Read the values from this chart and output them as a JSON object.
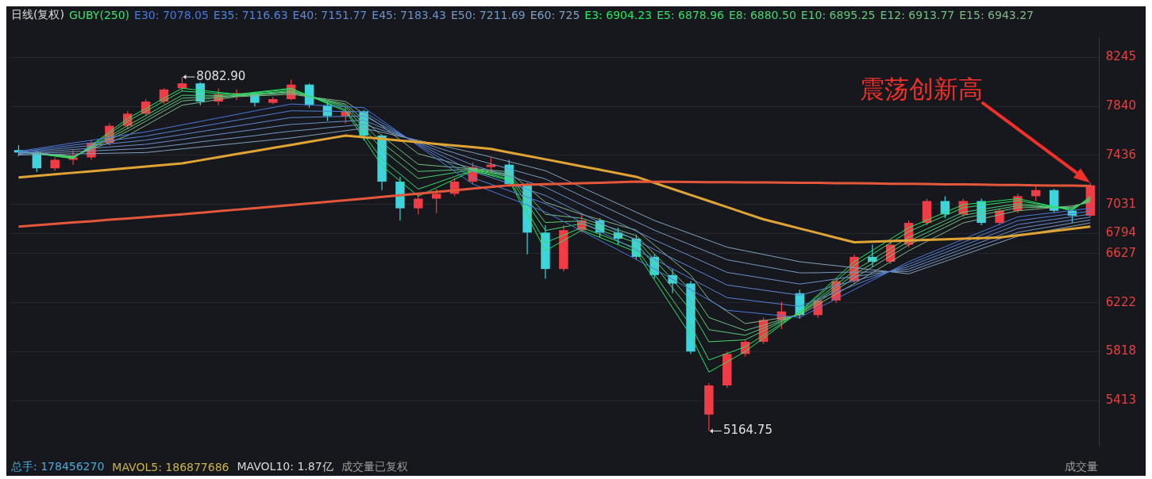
{
  "chart_data": {
    "type": "candlestick",
    "title": "日线(复权)",
    "subtitle": "GUBY(250)",
    "categories": [
      null,
      null,
      null,
      null,
      null,
      null,
      null,
      null,
      null,
      null,
      null,
      null,
      null,
      null,
      null,
      null,
      null,
      null,
      null,
      null,
      null,
      null,
      null,
      null,
      null,
      null,
      null,
      null,
      null,
      null,
      null,
      null,
      null,
      null,
      null,
      null,
      null,
      null,
      null,
      null,
      null,
      null,
      null,
      null,
      null,
      null,
      null,
      null,
      null,
      null,
      null,
      null,
      null,
      null,
      null,
      null,
      null,
      null,
      null,
      null
    ],
    "ohlc": [
      [
        7480,
        7520,
        7430,
        7460
      ],
      [
        7460,
        7480,
        7300,
        7330
      ],
      [
        7330,
        7420,
        7310,
        7400
      ],
      [
        7400,
        7480,
        7360,
        7420
      ],
      [
        7420,
        7560,
        7400,
        7540
      ],
      [
        7540,
        7700,
        7520,
        7680
      ],
      [
        7680,
        7800,
        7650,
        7780
      ],
      [
        7780,
        7900,
        7760,
        7880
      ],
      [
        7880,
        7990,
        7860,
        7980
      ],
      [
        7990,
        8082.9,
        7960,
        8030
      ],
      [
        8030,
        8040,
        7850,
        7880
      ],
      [
        7880,
        7990,
        7850,
        7940
      ],
      [
        7940,
        7980,
        7890,
        7950
      ],
      [
        7950,
        7960,
        7840,
        7870
      ],
      [
        7870,
        7920,
        7860,
        7900
      ],
      [
        7900,
        8060,
        7890,
        8020
      ],
      [
        8020,
        8030,
        7830,
        7850
      ],
      [
        7850,
        7880,
        7720,
        7760
      ],
      [
        7760,
        7830,
        7700,
        7800
      ],
      [
        7800,
        7810,
        7560,
        7600
      ],
      [
        7600,
        7610,
        7150,
        7220
      ],
      [
        7220,
        7260,
        6900,
        7000
      ],
      [
        7000,
        7120,
        6950,
        7080
      ],
      [
        7080,
        7160,
        6960,
        7120
      ],
      [
        7120,
        7250,
        7100,
        7220
      ],
      [
        7220,
        7380,
        7200,
        7340
      ],
      [
        7340,
        7420,
        7300,
        7360
      ],
      [
        7360,
        7400,
        7180,
        7200
      ],
      [
        7200,
        7210,
        6620,
        6800
      ],
      [
        6800,
        6860,
        6420,
        6500
      ],
      [
        6500,
        6860,
        6480,
        6820
      ],
      [
        6820,
        6950,
        6800,
        6900
      ],
      [
        6900,
        6920,
        6760,
        6800
      ],
      [
        6800,
        6840,
        6700,
        6750
      ],
      [
        6750,
        6780,
        6580,
        6600
      ],
      [
        6600,
        6620,
        6420,
        6450
      ],
      [
        6450,
        6500,
        6300,
        6380
      ],
      [
        6380,
        6400,
        5800,
        5820
      ],
      [
        5300,
        5560,
        5164.75,
        5540
      ],
      [
        5540,
        5820,
        5520,
        5800
      ],
      [
        5800,
        5920,
        5780,
        5900
      ],
      [
        5900,
        6100,
        5880,
        6080
      ],
      [
        6080,
        6230,
        6005,
        6150
      ],
      [
        6300,
        6330,
        6090,
        6120
      ],
      [
        6120,
        6260,
        6100,
        6240
      ],
      [
        6240,
        6420,
        6220,
        6400
      ],
      [
        6400,
        6620,
        6380,
        6600
      ],
      [
        6600,
        6700,
        6520,
        6560
      ],
      [
        6560,
        6720,
        6540,
        6700
      ],
      [
        6700,
        6900,
        6680,
        6880
      ],
      [
        6880,
        7080,
        6860,
        7060
      ],
      [
        7060,
        7100,
        6920,
        6950
      ],
      [
        6950,
        7080,
        6930,
        7060
      ],
      [
        7060,
        7080,
        6860,
        6880
      ],
      [
        6880,
        7000,
        6860,
        6980
      ],
      [
        6980,
        7120,
        6960,
        7100
      ],
      [
        7100,
        7180,
        7060,
        7150
      ],
      [
        7150,
        7160,
        6960,
        6980
      ],
      [
        6980,
        7000,
        6880,
        6940
      ],
      [
        6940,
        7210,
        6930,
        7190
      ]
    ],
    "colors": [
      "#3fd3dc",
      "#3fd3dc",
      "#f03c46",
      "#f03c46",
      "#f03c46",
      "#f03c46",
      "#f03c46",
      "#f03c46",
      "#f03c46",
      "#f03c46",
      "#3fd3dc",
      "#f03c46",
      "#f03c46",
      "#3fd3dc",
      "#f03c46",
      "#f03c46",
      "#3fd3dc",
      "#3fd3dc",
      "#f03c46",
      "#3fd3dc",
      "#3fd3dc",
      "#3fd3dc",
      "#f03c46",
      "#f03c46",
      "#f03c46",
      "#f03c46",
      "#f03c46",
      "#3fd3dc",
      "#3fd3dc",
      "#3fd3dc",
      "#f03c46",
      "#f03c46",
      "#3fd3dc",
      "#3fd3dc",
      "#3fd3dc",
      "#3fd3dc",
      "#3fd3dc",
      "#3fd3dc",
      "#f03c46",
      "#f03c46",
      "#f03c46",
      "#f03c46",
      "#f03c46",
      "#3fd3dc",
      "#f03c46",
      "#f03c46",
      "#f03c46",
      "#3fd3dc",
      "#f03c46",
      "#f03c46",
      "#f03c46",
      "#3fd3dc",
      "#f03c46",
      "#3fd3dc",
      "#f03c46",
      "#f03c46",
      "#f03c46",
      "#3fd3dc",
      "#3fd3dc",
      "#f03c46"
    ],
    "series": [
      {
        "type": "line",
        "color": "#e4573a",
        "values": [
          6850,
          6861,
          6872,
          6883,
          6894,
          6906,
          6917,
          6928,
          6939,
          6950,
          6963,
          6976,
          6989,
          7002,
          7015,
          7028,
          7041,
          7054,
          7067,
          7080,
          7094,
          7108,
          7121,
          7135,
          7149,
          7163,
          7176,
          7190,
          7194,
          7199,
          7203,
          7207,
          7211,
          7216,
          7220,
          7219,
          7218,
          7217,
          7216,
          7215,
          7214,
          7213,
          7212,
          7211,
          7210,
          7208,
          7207,
          7205,
          7203,
          7202,
          7200,
          7198,
          7197,
          7195,
          7193,
          7192,
          7190,
          7188,
          7187,
          7185
        ]
      },
      {
        "type": "line",
        "color": "#e0a434",
        "values": [
          7255,
          7268,
          7281,
          7293,
          7306,
          7319,
          7332,
          7344,
          7357,
          7370,
          7396,
          7421,
          7447,
          7472,
          7498,
          7523,
          7549,
          7574,
          7600,
          7586,
          7573,
          7559,
          7545,
          7531,
          7518,
          7504,
          7490,
          7461,
          7433,
          7404,
          7375,
          7346,
          7318,
          7289,
          7260,
          7210,
          7160,
          7110,
          7060,
          7010,
          6960,
          6910,
          6872,
          6834,
          6796,
          6758,
          6720,
          6725,
          6730,
          6735,
          6740,
          6745,
          6750,
          6755,
          6760,
          6778,
          6796,
          6814,
          6832,
          6850
        ]
      },
      {
        "type": "line",
        "name": "E30: 7078.05",
        "color": "#4a78dc",
        "values": [
          7470,
          7493,
          7516,
          7539,
          7561,
          7584,
          7607,
          7630,
          7659,
          7688,
          7716,
          7745,
          7774,
          7803,
          7831,
          7860,
          7853,
          7845,
          7838,
          7830,
          7725,
          7620,
          7515,
          7410,
          7305,
          7200,
          7143,
          7085,
          7028,
          6970,
          6892,
          6813,
          6735,
          6657,
          6578,
          6500,
          6415,
          6330,
          6245,
          6160,
          6145,
          6130,
          6115,
          6100,
          6177,
          6253,
          6330,
          6407,
          6483,
          6560,
          6622,
          6683,
          6745,
          6807,
          6868,
          6930,
          6948,
          6965,
          6983,
          7000
        ]
      },
      {
        "type": "line",
        "name": "E35: 7116.63",
        "color": "#5580d6",
        "values": [
          7464,
          7483,
          7502,
          7521,
          7539,
          7558,
          7577,
          7596,
          7622,
          7648,
          7674,
          7700,
          7726,
          7752,
          7778,
          7804,
          7802,
          7800,
          7798,
          7796,
          7705,
          7615,
          7524,
          7433,
          7343,
          7252,
          7199,
          7145,
          7092,
          7038,
          6962,
          6885,
          6809,
          6733,
          6656,
          6580,
          6501,
          6422,
          6343,
          6264,
          6246,
          6228,
          6210,
          6192,
          6250,
          6308,
          6366,
          6424,
          6482,
          6540,
          6600,
          6659,
          6719,
          6779,
          6838,
          6898,
          6918,
          6937,
          6957,
          6976
        ]
      },
      {
        "type": "line",
        "name": "E40: 7151.77",
        "color": "#6088d0",
        "values": [
          7458,
          7473,
          7488,
          7503,
          7517,
          7532,
          7547,
          7562,
          7585,
          7608,
          7632,
          7655,
          7678,
          7701,
          7725,
          7748,
          7751,
          7755,
          7758,
          7762,
          7685,
          7610,
          7533,
          7456,
          7381,
          7304,
          7255,
          7205,
          7156,
          7106,
          7032,
          6957,
          6883,
          6809,
          6734,
          6660,
          6587,
          6514,
          6441,
          6368,
          6347,
          6326,
          6305,
          6284,
          6323,
          6363,
          6402,
          6441,
          6481,
          6520,
          6578,
          6635,
          6693,
          6751,
          6808,
          6866,
          6888,
          6909,
          6931,
          6952
        ]
      },
      {
        "type": "line",
        "name": "E45: 7183.43",
        "color": "#6b90ca",
        "values": [
          7452,
          7463,
          7474,
          7485,
          7495,
          7506,
          7517,
          7528,
          7548,
          7568,
          7590,
          7610,
          7630,
          7650,
          7672,
          7692,
          7700,
          7710,
          7718,
          7728,
          7665,
          7605,
          7542,
          7479,
          7419,
          7356,
          7311,
          7265,
          7220,
          7174,
          7102,
          7029,
          6957,
          6885,
          6812,
          6740,
          6673,
          6606,
          6539,
          6472,
          6448,
          6424,
          6400,
          6376,
          6396,
          6418,
          6438,
          6458,
          6480,
          6500,
          6556,
          6611,
          6667,
          6723,
          6778,
          6834,
          6858,
          6881,
          6905,
          6928
        ]
      },
      {
        "type": "line",
        "name": "E50: 7211.69",
        "color": "#7698c4",
        "values": [
          7446,
          7453,
          7460,
          7467,
          7473,
          7480,
          7487,
          7494,
          7511,
          7528,
          7548,
          7565,
          7582,
          7599,
          7619,
          7636,
          7649,
          7665,
          7678,
          7694,
          7645,
          7600,
          7551,
          7502,
          7457,
          7408,
          7367,
          7325,
          7284,
          7242,
          7172,
          7101,
          7031,
          6961,
          6890,
          6820,
          6759,
          6698,
          6637,
          6576,
          6549,
          6522,
          6495,
          6468,
          6469,
          6473,
          6474,
          6475,
          6479,
          6480,
          6534,
          6587,
          6641,
          6695,
          6748,
          6802,
          6828,
          6853,
          6879,
          6904
        ]
      },
      {
        "type": "line",
        "name": "E60: 725",
        "color": "#81a0be",
        "values": [
          7440,
          7443,
          7446,
          7449,
          7451,
          7454,
          7457,
          7460,
          7475,
          7490,
          7505,
          7520,
          7535,
          7550,
          7565,
          7580,
          7600,
          7620,
          7640,
          7660,
          7627,
          7593,
          7560,
          7527,
          7493,
          7460,
          7423,
          7385,
          7348,
          7310,
          7242,
          7173,
          7105,
          7037,
          6968,
          6900,
          6845,
          6790,
          6735,
          6680,
          6650,
          6620,
          6590,
          6560,
          6543,
          6527,
          6510,
          6493,
          6477,
          6460,
          6512,
          6563,
          6615,
          6667,
          6718,
          6770,
          6798,
          6825,
          6853,
          6880
        ]
      },
      {
        "type": "line",
        "name": "E3: 6904.23",
        "color": "#22e860",
        "values": [
          7470,
          7450,
          7430,
          7410,
          7520,
          7630,
          7740,
          7823,
          7907,
          7990,
          7973,
          7957,
          7940,
          7957,
          7973,
          7990,
          7927,
          7863,
          7800,
          7575,
          7350,
          7225,
          7100,
          7170,
          7240,
          7310,
          7270,
          7230,
          6940,
          6650,
          6735,
          6820,
          6760,
          6700,
          6640,
          6410,
          6180,
          5950,
          5650,
          5735,
          5820,
          5930,
          6040,
          6150,
          6287,
          6423,
          6560,
          6653,
          6747,
          6840,
          6903,
          6967,
          7030,
          7047,
          7063,
          7080,
          7047,
          7013,
          6980,
          7100
        ]
      },
      {
        "type": "line",
        "name": "E5: 6878.96",
        "color": "#35de68",
        "values": [
          7468,
          7451,
          7432,
          7413,
          7514,
          7615,
          7717,
          7800,
          7884,
          7967,
          7956,
          7947,
          7937,
          7952,
          7966,
          7982,
          7926,
          7869,
          7813,
          7609,
          7405,
          7282,
          7158,
          7210,
          7262,
          7313,
          7278,
          7242,
          6979,
          6717,
          6779,
          6842,
          6785,
          6727,
          6670,
          6458,
          6246,
          6033,
          5750,
          5804,
          5858,
          5954,
          6050,
          6145,
          6274,
          6401,
          6530,
          6622,
          6716,
          6808,
          6874,
          6940,
          7005,
          7025,
          7044,
          7063,
          7038,
          7012,
          6987,
          7092
        ]
      },
      {
        "type": "line",
        "name": "E8: 6880.50",
        "color": "#48d470",
        "values": [
          7466,
          7453,
          7435,
          7418,
          7506,
          7594,
          7682,
          7765,
          7849,
          7932,
          7931,
          7932,
          7932,
          7944,
          7956,
          7969,
          7924,
          7878,
          7833,
          7660,
          7488,
          7367,
          7246,
          7270,
          7294,
          7318,
          7289,
          7259,
          7038,
          6817,
          6846,
          6874,
          6821,
          6768,
          6715,
          6530,
          6344,
          6158,
          5900,
          5908,
          5916,
          5990,
          6064,
          6138,
          6254,
          6369,
          6485,
          6577,
          6669,
          6761,
          6830,
          6899,
          6968,
          6991,
          7015,
          7038,
          7024,
          7010,
          6997,
          7079
        ]
      },
      {
        "type": "line",
        "name": "E10: 6895.25",
        "color": "#5bca78",
        "values": [
          7464,
          7454,
          7438,
          7422,
          7501,
          7579,
          7658,
          7741,
          7825,
          7908,
          7915,
          7922,
          7928,
          7940,
          7950,
          7961,
          7923,
          7885,
          7847,
          7695,
          7542,
          7423,
          7304,
          7310,
          7316,
          7322,
          7296,
          7271,
          7077,
          6883,
          6890,
          6896,
          6846,
          6795,
          6745,
          6577,
          6409,
          6242,
          6000,
          5977,
          5954,
          6013,
          6073,
          6133,
          6240,
          6347,
          6455,
          6546,
          6638,
          6729,
          6800,
          6871,
          6943,
          6969,
          6995,
          7022,
          7016,
          7010,
          7003,
          7071
        ]
      },
      {
        "type": "line",
        "name": "E12: 6913.77",
        "color": "#6ec080",
        "values": [
          7462,
          7455,
          7440,
          7425,
          7495,
          7565,
          7635,
          7718,
          7802,
          7885,
          7898,
          7912,
          7925,
          7935,
          7943,
          7953,
          7922,
          7891,
          7860,
          7729,
          7598,
          7480,
          7363,
          7350,
          7338,
          7325,
          7304,
          7283,
          7116,
          6950,
          6934,
          6918,
          6870,
          6822,
          6775,
          6625,
          6475,
          6325,
          6100,
          6046,
          5993,
          6037,
          6083,
          6128,
          6227,
          6326,
          6425,
          6516,
          6607,
          6698,
          6771,
          6844,
          6918,
          6947,
          6976,
          7005,
          7007,
          7009,
          7010,
          7063
        ]
      },
      {
        "type": "line",
        "name": "E15: 6943.27",
        "color": "#81b688",
        "values": [
          7460,
          7457,
          7443,
          7430,
          7487,
          7543,
          7600,
          7683,
          7767,
          7850,
          7873,
          7897,
          7920,
          7927,
          7933,
          7940,
          7920,
          7900,
          7880,
          7780,
          7680,
          7565,
          7450,
          7410,
          7370,
          7330,
          7315,
          7300,
          7175,
          7050,
          7000,
          6950,
          6907,
          6863,
          6820,
          6697,
          6573,
          6450,
          6250,
          6150,
          6050,
          6073,
          6097,
          6120,
          6207,
          6293,
          6380,
          6470,
          6560,
          6650,
          6727,
          6803,
          6880,
          6913,
          6947,
          6980,
          6993,
          7007,
          7020,
          7050
        ]
      }
    ],
    "ylim": [
      5050,
      8410
    ],
    "yticks": [
      5413,
      5818,
      6222,
      6627,
      6794,
      7031,
      7436,
      7840,
      8245
    ],
    "grid": "y",
    "tick_labels": "y",
    "line_style": "solid",
    "annotations": [
      "8082.90",
      "5164.75",
      "震荡创新高",
      "总手: 178456270",
      "MAVOL5: 186877686",
      "MAVOL10: 1.87亿",
      "成交量已复权",
      "成交量"
    ]
  }
}
